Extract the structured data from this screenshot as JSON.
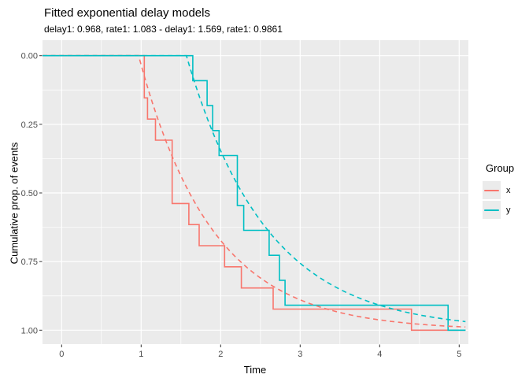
{
  "header": {
    "title": "Fitted exponential delay models",
    "subtitle": "delay1: 0.968, rate1: 1.083 - delay1: 1.569, rate1: 0.9861"
  },
  "legend": {
    "title": "Group",
    "position": "right",
    "items": [
      {
        "label": "x",
        "color": "#F8766D"
      },
      {
        "label": "y",
        "color": "#00BFC4"
      }
    ]
  },
  "chart_data": {
    "type": "line",
    "title": "Fitted exponential delay models",
    "subtitle": "delay1: 0.968, rate1: 1.083 - delay1: 1.569, rate1: 0.9861",
    "xlabel": "Time",
    "ylabel": "Cumulative prop. of events",
    "x_ticks": [
      0,
      1,
      2,
      3,
      4,
      5
    ],
    "x_tick_labels": [
      "0",
      "1",
      "2",
      "3",
      "4",
      "5"
    ],
    "y_ticks": [
      0,
      0.25,
      0.5,
      0.75,
      1
    ],
    "y_tick_labels": [
      "0.00",
      "0.25",
      "0.50",
      "0.75",
      "1.00"
    ],
    "y_axis_reversed": true,
    "grid": true,
    "x_range_shown": [
      -0.24,
      5.32
    ],
    "y_range_shown": [
      -0.057,
      1.051
    ],
    "curve_end_x": 5.08,
    "colors": {
      "panel_bg": "#EBEBEB",
      "grid": "#FFFFFF",
      "tick_text": "#4D4D4D",
      "tick_mark": "#333333",
      "text": "#000000"
    },
    "series": [
      {
        "name": "x",
        "color": "#F8766D",
        "empirical_style": "solid-step",
        "fit_style": "dashed",
        "fit": {
          "delay1": 0.968,
          "rate1": 1.083
        },
        "empirical_steps": [
          [
            1.04,
            0.1538
          ],
          [
            1.08,
            0.2308
          ],
          [
            1.18,
            0.3077
          ],
          [
            1.39,
            0.5385
          ],
          [
            1.6,
            0.6154
          ],
          [
            1.73,
            0.6923
          ],
          [
            2.05,
            0.7692
          ],
          [
            2.26,
            0.8462
          ],
          [
            2.66,
            0.9231
          ],
          [
            4.4,
            1.0
          ]
        ]
      },
      {
        "name": "y",
        "color": "#00BFC4",
        "empirical_style": "solid-step",
        "fit_style": "dashed",
        "fit": {
          "delay1": 1.569,
          "rate1": 0.9861
        },
        "empirical_steps": [
          [
            1.65,
            0.0909
          ],
          [
            1.83,
            0.1818
          ],
          [
            1.9,
            0.2727
          ],
          [
            1.98,
            0.3636
          ],
          [
            2.21,
            0.5455
          ],
          [
            2.29,
            0.6364
          ],
          [
            2.61,
            0.7273
          ],
          [
            2.74,
            0.8182
          ],
          [
            2.81,
            0.9091
          ],
          [
            4.86,
            1.0
          ]
        ]
      }
    ]
  }
}
